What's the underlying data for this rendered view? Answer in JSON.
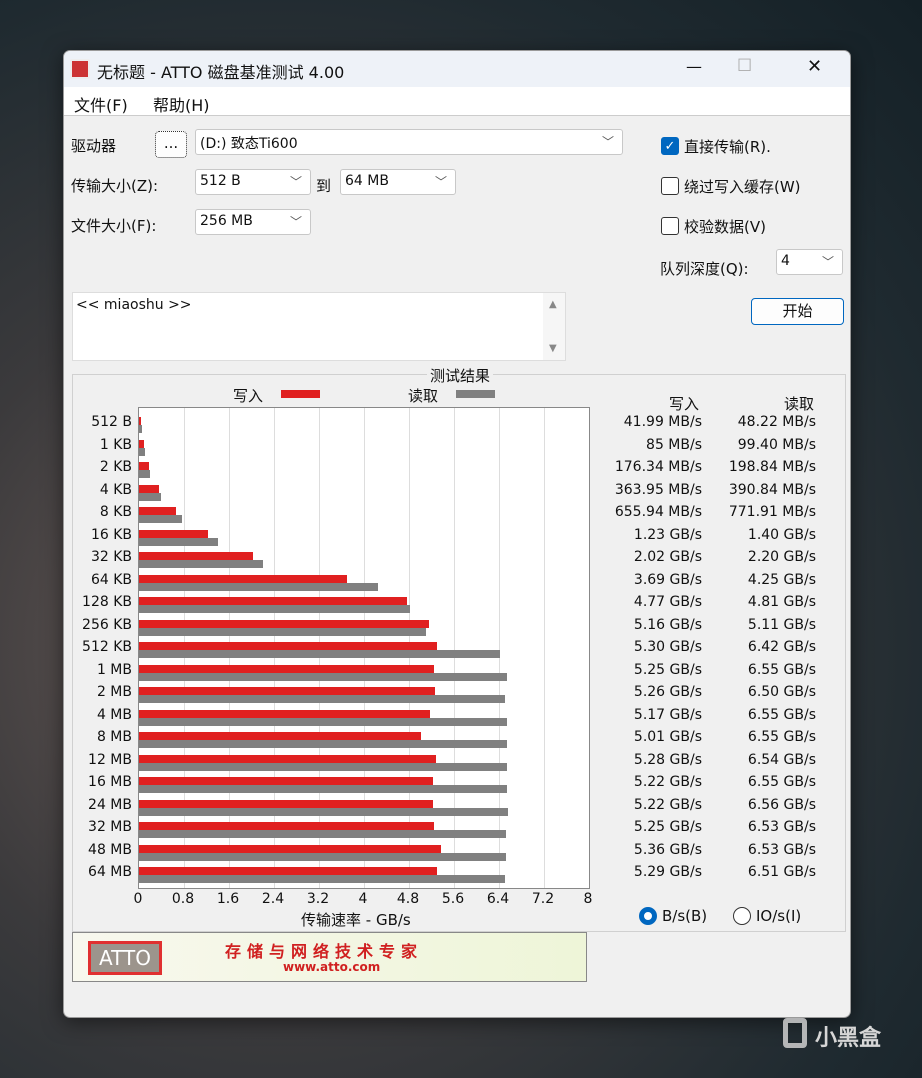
{
  "window": {
    "title": "无标题 - ATTO 磁盘基准测试 4.00",
    "minimize": "—",
    "maximize": "☐",
    "close": "✕"
  },
  "menu": [
    "文件(F)",
    "帮助(H)"
  ],
  "form": {
    "drive_label": "驱动器",
    "browse_label": "...",
    "drive_value": "(D:) 致态Ti600",
    "transfer_label": "传输大小(Z):",
    "transfer_from": "512 B",
    "to_label": "到",
    "transfer_to": "64 MB",
    "file_size_label": "文件大小(F):",
    "file_size": "256 MB",
    "direct_io": {
      "label": "直接传输(R).",
      "checked": true
    },
    "bypass_cache": {
      "label": "绕过写入缓存(W)",
      "checked": false
    },
    "verify": {
      "label": "校验数据(V)",
      "checked": false
    },
    "queue_label": "队列深度(Q):",
    "queue_value": "4",
    "start_label": "开始",
    "description": "<< miaoshu >>"
  },
  "results": {
    "title": "测试结果",
    "write_header": "写入",
    "read_header": "读取",
    "write_values": [
      "41.99 MB/s",
      "85 MB/s",
      "176.34 MB/s",
      "363.95 MB/s",
      "655.94 MB/s",
      "1.23 GB/s",
      "2.02 GB/s",
      "3.69 GB/s",
      "4.77 GB/s",
      "5.16 GB/s",
      "5.30 GB/s",
      "5.25 GB/s",
      "5.26 GB/s",
      "5.17 GB/s",
      "5.01 GB/s",
      "5.28 GB/s",
      "5.22 GB/s",
      "5.22 GB/s",
      "5.25 GB/s",
      "5.36 GB/s",
      "5.29 GB/s"
    ],
    "read_values": [
      "48.22 MB/s",
      "99.40 MB/s",
      "198.84 MB/s",
      "390.84 MB/s",
      "771.91 MB/s",
      "1.40 GB/s",
      "2.20 GB/s",
      "4.25 GB/s",
      "4.81 GB/s",
      "5.11 GB/s",
      "6.42 GB/s",
      "6.55 GB/s",
      "6.50 GB/s",
      "6.55 GB/s",
      "6.55 GB/s",
      "6.54 GB/s",
      "6.55 GB/s",
      "6.56 GB/s",
      "6.53 GB/s",
      "6.53 GB/s",
      "6.51 GB/s"
    ],
    "units": {
      "bps_label": "B/s(B)",
      "iops_label": "IO/s(I)",
      "selected": "B/s"
    }
  },
  "chart_data": {
    "type": "bar",
    "orientation": "horizontal",
    "categories": [
      "512 B",
      "1 KB",
      "2 KB",
      "4 KB",
      "8 KB",
      "16 KB",
      "32 KB",
      "64 KB",
      "128 KB",
      "256 KB",
      "512 KB",
      "1 MB",
      "2 MB",
      "4 MB",
      "8 MB",
      "12 MB",
      "16 MB",
      "24 MB",
      "32 MB",
      "48 MB",
      "64 MB"
    ],
    "series": [
      {
        "name": "写入",
        "color": "#e02020",
        "values": [
          0.042,
          0.085,
          0.176,
          0.364,
          0.656,
          1.23,
          2.02,
          3.69,
          4.77,
          5.16,
          5.3,
          5.25,
          5.26,
          5.17,
          5.01,
          5.28,
          5.22,
          5.22,
          5.25,
          5.36,
          5.29
        ]
      },
      {
        "name": "读取",
        "color": "#808080",
        "values": [
          0.048,
          0.099,
          0.199,
          0.391,
          0.772,
          1.4,
          2.2,
          4.25,
          4.81,
          5.11,
          6.42,
          6.55,
          6.5,
          6.55,
          6.55,
          6.54,
          6.55,
          6.56,
          6.53,
          6.53,
          6.51
        ]
      }
    ],
    "xlabel": "传输速率 - GB/s",
    "xlim": [
      0,
      8
    ],
    "xticks": [
      "0",
      "0.8",
      "1.6",
      "2.4",
      "3.2",
      "4",
      "4.8",
      "5.6",
      "6.4",
      "7.2",
      "8"
    ],
    "grid": true,
    "legend": "top"
  },
  "banner": {
    "logo": "ATTO",
    "slogan": "存储与网络技术专家",
    "url": "www.atto.com"
  },
  "watermark": "小黑盒"
}
